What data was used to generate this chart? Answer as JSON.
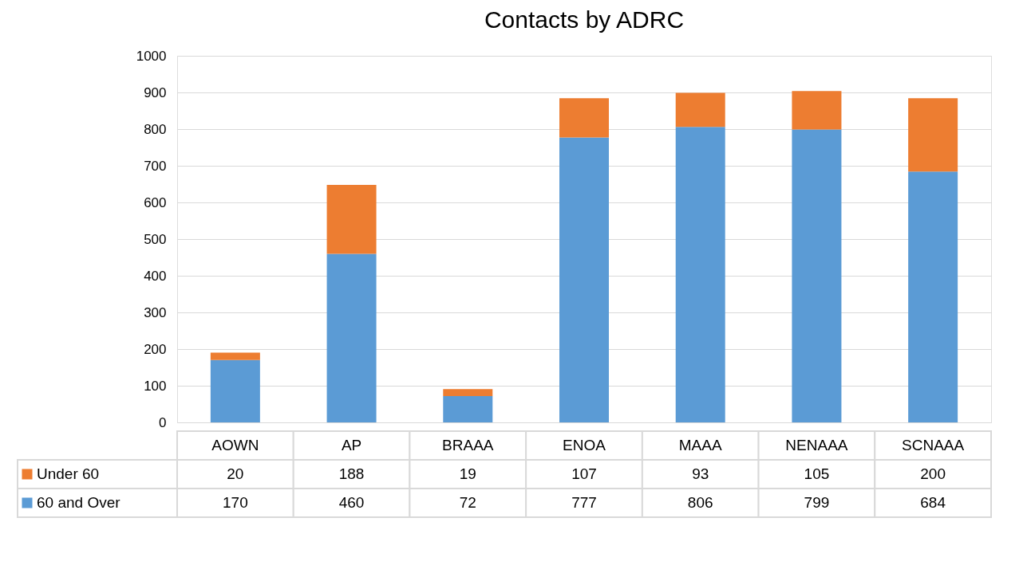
{
  "chart_data": {
    "type": "bar",
    "title": "Contacts by ADRC",
    "stacked": true,
    "categories": [
      "AOWN",
      "AP",
      "BRAAA",
      "ENOA",
      "MAAA",
      "NENAAA",
      "SCNAAA"
    ],
    "series": [
      {
        "name": "60 and Over",
        "color": "#5b9bd5",
        "values": [
          170,
          460,
          72,
          777,
          806,
          799,
          684
        ]
      },
      {
        "name": "Under 60",
        "color": "#ed7d31",
        "values": [
          20,
          188,
          19,
          107,
          93,
          105,
          200
        ]
      }
    ],
    "ylim": [
      0,
      1000
    ],
    "yticks": [
      0,
      100,
      200,
      300,
      400,
      500,
      600,
      700,
      800,
      900,
      1000
    ],
    "grid": "y",
    "legend": "bottom",
    "data_labels": true
  }
}
